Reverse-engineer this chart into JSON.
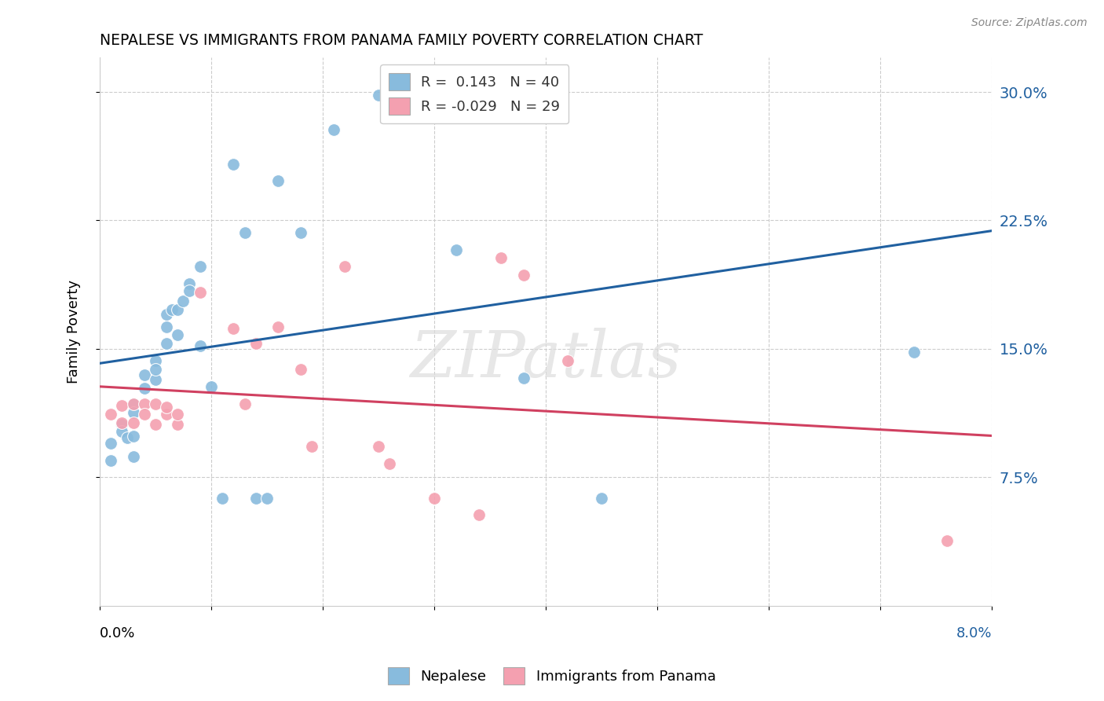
{
  "title": "NEPALESE VS IMMIGRANTS FROM PANAMA FAMILY POVERTY CORRELATION CHART",
  "source": "Source: ZipAtlas.com",
  "ylabel": "Family Poverty",
  "yticks": [
    0.075,
    0.15,
    0.225,
    0.3
  ],
  "ytick_labels": [
    "7.5%",
    "15.0%",
    "22.5%",
    "30.0%"
  ],
  "xlim": [
    0.0,
    0.08
  ],
  "ylim": [
    0.0,
    0.32
  ],
  "legend_blue_r": "0.143",
  "legend_blue_n": "40",
  "legend_pink_r": "-0.029",
  "legend_pink_n": "29",
  "blue_color": "#88bbdd",
  "pink_color": "#f4a0b0",
  "blue_line_color": "#2060a0",
  "pink_line_color": "#d04060",
  "nepalese_x": [
    0.001,
    0.001,
    0.002,
    0.002,
    0.0025,
    0.003,
    0.003,
    0.003,
    0.003,
    0.004,
    0.004,
    0.005,
    0.005,
    0.005,
    0.006,
    0.006,
    0.006,
    0.0065,
    0.007,
    0.007,
    0.0075,
    0.008,
    0.008,
    0.009,
    0.009,
    0.01,
    0.011,
    0.012,
    0.013,
    0.014,
    0.015,
    0.016,
    0.018,
    0.021,
    0.025,
    0.03,
    0.032,
    0.038,
    0.045,
    0.073
  ],
  "nepalese_y": [
    0.095,
    0.085,
    0.106,
    0.102,
    0.098,
    0.118,
    0.113,
    0.099,
    0.087,
    0.127,
    0.135,
    0.132,
    0.143,
    0.138,
    0.153,
    0.163,
    0.17,
    0.173,
    0.158,
    0.173,
    0.178,
    0.188,
    0.184,
    0.198,
    0.152,
    0.128,
    0.063,
    0.258,
    0.218,
    0.063,
    0.063,
    0.248,
    0.218,
    0.278,
    0.298,
    0.287,
    0.208,
    0.133,
    0.063,
    0.148
  ],
  "panama_x": [
    0.001,
    0.002,
    0.002,
    0.003,
    0.003,
    0.004,
    0.004,
    0.005,
    0.005,
    0.006,
    0.006,
    0.007,
    0.007,
    0.009,
    0.012,
    0.013,
    0.014,
    0.016,
    0.018,
    0.019,
    0.022,
    0.025,
    0.026,
    0.03,
    0.034,
    0.036,
    0.038,
    0.042,
    0.076
  ],
  "panama_y": [
    0.112,
    0.107,
    0.117,
    0.118,
    0.107,
    0.118,
    0.112,
    0.118,
    0.106,
    0.112,
    0.116,
    0.106,
    0.112,
    0.183,
    0.162,
    0.118,
    0.153,
    0.163,
    0.138,
    0.093,
    0.198,
    0.093,
    0.083,
    0.063,
    0.053,
    0.203,
    0.193,
    0.143,
    0.038
  ],
  "background_color": "#ffffff",
  "grid_color": "#cccccc"
}
